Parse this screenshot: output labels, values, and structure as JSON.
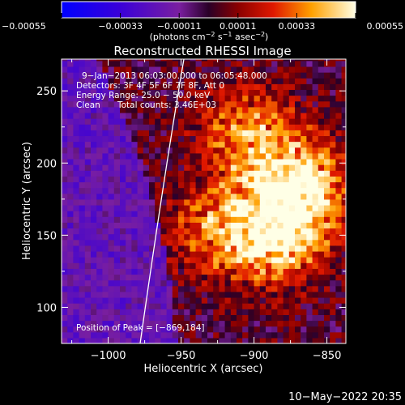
{
  "chart_data": {
    "type": "heatmap",
    "title": "Reconstructed RHESSI Image",
    "xlabel": "Heliocentric X (arcsec)",
    "ylabel": "Heliocentric Y (arcsec)",
    "xlim": [
      -1032,
      -837
    ],
    "ylim": [
      75,
      272
    ],
    "x_ticks": [
      -1000,
      -950,
      -900,
      -850
    ],
    "x_tick_labels": [
      "−1000",
      "−950",
      "−900",
      "−850"
    ],
    "y_ticks": [
      100,
      150,
      200,
      250
    ],
    "y_tick_labels": [
      "100",
      "150",
      "200",
      "250"
    ],
    "colorbar": {
      "range": [
        -0.00055,
        0.00055
      ],
      "ticks": [
        -0.00055,
        -0.00033,
        -0.00011,
        0.00011,
        0.00033,
        0.00055
      ],
      "tick_labels": [
        "−0.00055",
        "−0.00033",
        "−0.00011",
        "0.00011",
        "0.00033",
        "0.00055"
      ],
      "units_text": "(photons cm",
      "units_exp1": "−2",
      "units_mid": " s",
      "units_exp2": "−1",
      "units_mid2": " asec",
      "units_exp3": "−2",
      "units_close": ")"
    },
    "annotations": {
      "time_range": "9−Jan−2013 06:03:00.000 to 06:05:48.000",
      "detectors": "Detectors: 3F 4F 5F 6F 7F 8F, Att 0",
      "energy_range": "Energy Range: 25.0 − 50.0 keV",
      "method": "Clean",
      "total_counts": "Total counts: 3.46E+03",
      "peak_position": "Position of Peak = [−869,184]"
    },
    "hot_region_peaks": [
      {
        "x": -869,
        "y": 184,
        "value": 0.00055
      },
      {
        "x": -885,
        "y": 150,
        "value": 0.0005
      },
      {
        "x": -905,
        "y": 220,
        "value": 0.00035
      },
      {
        "x": -925,
        "y": 155,
        "value": 0.0003
      }
    ]
  },
  "footer": {
    "timestamp": "10−May−2022 20:35"
  }
}
